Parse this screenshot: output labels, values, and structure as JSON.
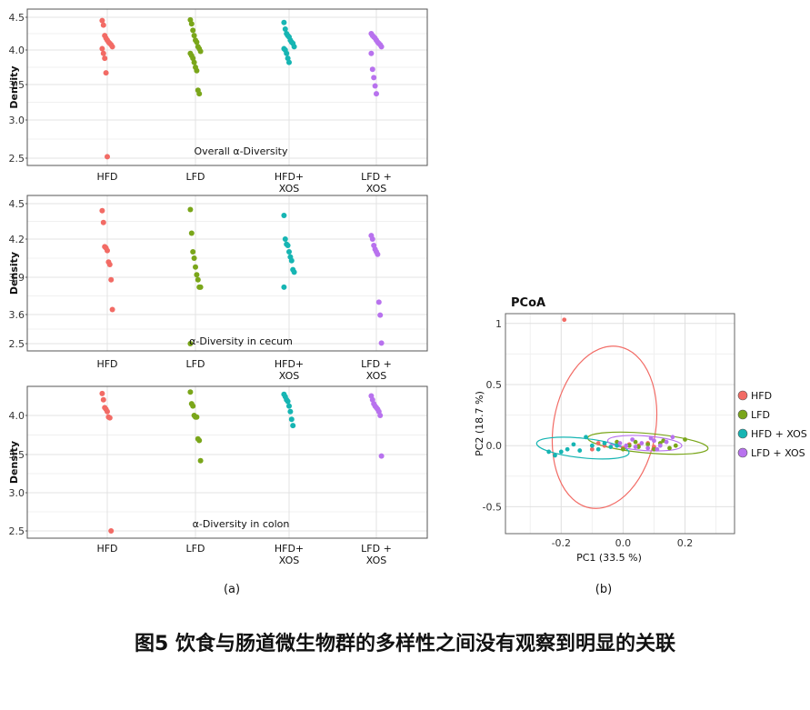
{
  "figure_caption": "图5 饮食与肠道微生物群的多样性之间没有观察到明显的关联",
  "colors": {
    "HFD": "#f26b65",
    "LFD": "#7aa61a",
    "HFD_XOS": "#16b5b3",
    "LFD_XOS": "#b872ee"
  },
  "chart_data": [
    {
      "type": "scatter",
      "panel_label": "",
      "annotation": "Overall α-Diversity",
      "ylabel": "Density",
      "categories": [
        "HFD",
        "LFD",
        "HFD+\nXOS",
        "LFD +\nXOS"
      ],
      "yticks": [
        "2.5",
        "3.0",
        "3.5",
        "4.0",
        "4.5"
      ],
      "ylim": [
        2.45,
        4.55
      ],
      "series": [
        {
          "values": [
            4.45,
            4.38,
            4.22,
            4.18,
            4.15,
            4.12,
            4.1,
            4.08,
            4.05,
            4.02,
            3.95,
            3.88,
            3.67,
            2.52
          ]
        },
        {
          "values": [
            4.46,
            4.4,
            4.3,
            4.22,
            4.15,
            4.12,
            4.05,
            4.02,
            3.98,
            3.95,
            3.92,
            3.88,
            3.82,
            3.75,
            3.7,
            3.42,
            3.37
          ]
        },
        {
          "values": [
            4.42,
            4.32,
            4.25,
            4.22,
            4.2,
            4.15,
            4.12,
            4.1,
            4.05,
            4.02,
            4.0,
            3.95,
            3.88,
            3.82
          ]
        },
        {
          "values": [
            4.25,
            4.22,
            4.2,
            4.18,
            4.15,
            4.12,
            4.1,
            4.08,
            4.05,
            3.95,
            3.72,
            3.6,
            3.48,
            3.37
          ]
        }
      ]
    },
    {
      "type": "scatter",
      "panel_label": "",
      "annotation": "α-Diversity in cecum",
      "ylabel": "Density",
      "categories": [
        "HFD",
        "LFD",
        "HFD+\nXOS",
        "LFD +\nXOS"
      ],
      "yticks": [
        "2.5",
        "3.6",
        "3.9",
        "4.2",
        "4.5"
      ],
      "series": [
        {
          "values": [
            4.44,
            4.34,
            4.14,
            4.13,
            4.11,
            4.02,
            4.0,
            3.88,
            3.64
          ]
        },
        {
          "values": [
            4.45,
            4.25,
            4.1,
            4.05,
            3.98,
            3.92,
            3.88,
            3.82,
            3.82,
            2.5
          ]
        },
        {
          "values": [
            4.4,
            4.2,
            4.16,
            4.15,
            4.1,
            4.06,
            4.03,
            3.96,
            3.94,
            3.82
          ]
        },
        {
          "values": [
            4.23,
            4.2,
            4.15,
            4.12,
            4.1,
            4.08,
            3.7,
            3.58,
            2.52
          ]
        }
      ]
    },
    {
      "type": "scatter",
      "panel_label": "(a)",
      "annotation": "α-Diversity in colon",
      "ylabel": "Density",
      "categories": [
        "HFD",
        "LFD",
        "HFD+\nXOS",
        "LFD +\nXOS"
      ],
      "yticks": [
        "2.5",
        "3.0",
        "3.5",
        "4.0"
      ],
      "ylim": [
        2.42,
        4.35
      ],
      "series": [
        {
          "values": [
            4.28,
            4.2,
            4.1,
            4.08,
            4.05,
            3.98,
            3.97,
            2.5
          ]
        },
        {
          "values": [
            4.3,
            4.15,
            4.12,
            4.0,
            3.98,
            3.98,
            3.7,
            3.68,
            3.42
          ]
        },
        {
          "values": [
            4.27,
            4.24,
            4.2,
            4.18,
            4.12,
            4.05,
            3.95,
            3.87
          ]
        },
        {
          "values": [
            4.25,
            4.2,
            4.15,
            4.12,
            4.1,
            4.08,
            4.05,
            4.0,
            3.48
          ]
        }
      ]
    },
    {
      "type": "scatter",
      "title": "PCoA",
      "panel_label": "(b)",
      "xlabel": "PC1 (33.5 %)",
      "ylabel": "PC2 (18.7 %)",
      "xlim": [
        -0.38,
        0.36
      ],
      "ylim": [
        -0.72,
        1.08
      ],
      "xticks": [
        "-0.2",
        "0.0",
        "0.2"
      ],
      "yticks": [
        "-0.5",
        "0.0",
        "0.5",
        "1"
      ],
      "legend": [
        "HFD",
        "LFD",
        "HFD + XOS",
        "LFD + XOS"
      ],
      "legend_position": "right",
      "series": [
        {
          "points": [
            [
              -0.19,
              1.03
            ],
            [
              -0.1,
              -0.03
            ],
            [
              -0.08,
              0.02
            ],
            [
              -0.06,
              0.0
            ],
            [
              0.0,
              -0.02
            ],
            [
              0.02,
              0.01
            ],
            [
              0.05,
              0.0
            ],
            [
              0.08,
              0.02
            ],
            [
              0.1,
              -0.01
            ]
          ],
          "ellipse": {
            "center": [
              -0.06,
              0.15
            ],
            "semi_axes": [
              0.165,
              0.67
            ],
            "angle_deg": 10
          }
        },
        {
          "points": [
            [
              0.2,
              0.05
            ],
            [
              0.15,
              -0.02
            ],
            [
              0.12,
              0.02
            ],
            [
              0.1,
              -0.03
            ],
            [
              0.08,
              0.01
            ],
            [
              0.05,
              -0.01
            ],
            [
              0.04,
              0.03
            ],
            [
              0.02,
              0.0
            ],
            [
              0.0,
              -0.03
            ],
            [
              -0.02,
              0.03
            ],
            [
              0.13,
              0.04
            ],
            [
              0.17,
              0.0
            ]
          ],
          "ellipse": {
            "center": [
              0.08,
              0.02
            ],
            "semi_axes": [
              0.195,
              0.08
            ],
            "angle_deg": 5
          }
        },
        {
          "points": [
            [
              -0.24,
              -0.05
            ],
            [
              -0.22,
              -0.08
            ],
            [
              -0.2,
              -0.05
            ],
            [
              -0.18,
              -0.03
            ],
            [
              -0.16,
              0.01
            ],
            [
              -0.14,
              -0.04
            ],
            [
              -0.12,
              0.07
            ],
            [
              -0.1,
              0.0
            ],
            [
              -0.08,
              -0.03
            ],
            [
              -0.06,
              0.02
            ],
            [
              -0.04,
              -0.01
            ],
            [
              -0.02,
              0.0
            ]
          ],
          "ellipse": {
            "center": [
              -0.13,
              -0.02
            ],
            "semi_axes": [
              0.15,
              0.08
            ],
            "angle_deg": 6
          }
        },
        {
          "points": [
            [
              0.16,
              0.07
            ],
            [
              0.14,
              0.03
            ],
            [
              0.12,
              0.0
            ],
            [
              0.1,
              0.04
            ],
            [
              0.08,
              -0.02
            ],
            [
              0.06,
              0.02
            ],
            [
              0.04,
              -0.01
            ],
            [
              0.03,
              0.05
            ],
            [
              0.01,
              0.0
            ],
            [
              -0.01,
              0.02
            ],
            [
              0.11,
              -0.03
            ],
            [
              0.09,
              0.06
            ]
          ],
          "ellipse": {
            "center": [
              0.07,
              0.02
            ],
            "semi_axes": [
              0.12,
              0.06
            ],
            "angle_deg": 4
          }
        }
      ]
    }
  ]
}
